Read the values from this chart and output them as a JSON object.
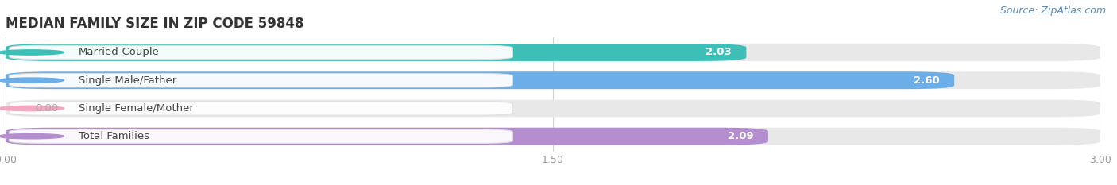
{
  "title": "MEDIAN FAMILY SIZE IN ZIP CODE 59848",
  "source": "Source: ZipAtlas.com",
  "categories": [
    "Married-Couple",
    "Single Male/Father",
    "Single Female/Mother",
    "Total Families"
  ],
  "values": [
    2.03,
    2.6,
    0.0,
    2.09
  ],
  "bar_colors": [
    "#3dbfb8",
    "#6baee8",
    "#f4a8bf",
    "#b48ecf"
  ],
  "bar_bg_color": "#e8e8e8",
  "xlim": [
    0,
    3.0
  ],
  "xticks": [
    0.0,
    1.5,
    3.0
  ],
  "background_color": "#ffffff",
  "title_fontsize": 12,
  "cat_fontsize": 9.5,
  "val_fontsize": 9.5,
  "tick_fontsize": 9,
  "source_fontsize": 9,
  "bar_height": 0.62,
  "bar_gap": 0.18
}
